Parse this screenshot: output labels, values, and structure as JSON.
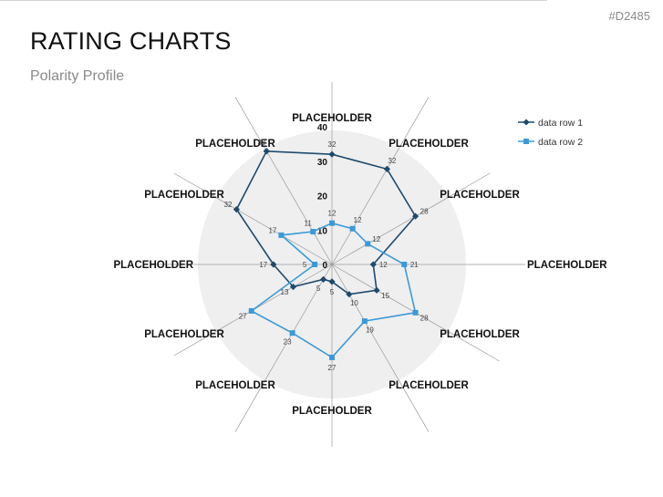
{
  "slide": {
    "id": "#D2485",
    "title": "RATING CHARTS",
    "subtitle": "Polarity Profile"
  },
  "colors": {
    "series1": "#1d4a6e",
    "series2": "#3a9ad9",
    "disk": "#efefef",
    "spoke": "#9a9a9a"
  },
  "chart_data": {
    "type": "radar",
    "categories": [
      "PLACEHOLDER",
      "PLACEHOLDER",
      "PLACEHOLDER",
      "PLACEHOLDER",
      "PLACEHOLDER",
      "PLACEHOLDER",
      "PLACEHOLDER",
      "PLACEHOLDER",
      "PLACEHOLDER",
      "PLACEHOLDER",
      "PLACEHOLDER",
      "PLACEHOLDER"
    ],
    "series": [
      {
        "name": "data row 1",
        "values": [
          32,
          32,
          28,
          12,
          15,
          10,
          5,
          5,
          13,
          17,
          32,
          38
        ],
        "marker": "diamond"
      },
      {
        "name": "data row 2",
        "values": [
          12,
          12,
          12,
          21,
          28,
          19,
          27,
          23,
          27,
          5,
          17,
          11
        ],
        "marker": "square"
      }
    ],
    "scale_labels": [
      "0",
      "10",
      "20",
      "30",
      "40"
    ],
    "rmax": 40,
    "legend_position": "top-right"
  }
}
